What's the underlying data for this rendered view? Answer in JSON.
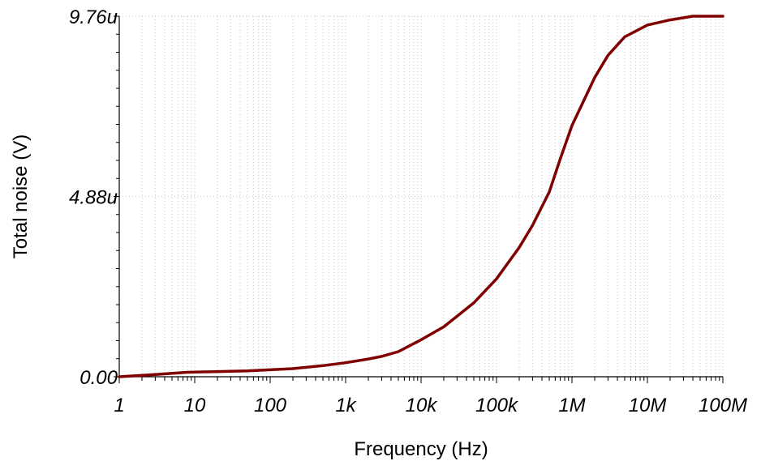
{
  "chart_data": {
    "type": "line",
    "xlabel": "Frequency (Hz)",
    "ylabel": "Total noise (V)",
    "x_scale": "log",
    "xlim": [
      1,
      100000000
    ],
    "ylim": [
      0,
      9.76
    ],
    "x_ticks": [
      {
        "value": 1,
        "label": "1"
      },
      {
        "value": 10,
        "label": "10"
      },
      {
        "value": 100,
        "label": "100"
      },
      {
        "value": 1000,
        "label": "1k"
      },
      {
        "value": 10000,
        "label": "10k"
      },
      {
        "value": 100000,
        "label": "100k"
      },
      {
        "value": 1000000,
        "label": "1M"
      },
      {
        "value": 10000000,
        "label": "10M"
      },
      {
        "value": 100000000,
        "label": "100M"
      }
    ],
    "y_ticks": [
      {
        "value": 0,
        "label": "0.00"
      },
      {
        "value": 4.88,
        "label": "4.88u"
      },
      {
        "value": 9.76,
        "label": "9.76u"
      }
    ],
    "y_unit_note": "values in microvolts",
    "grid": true,
    "legend": "none",
    "series": [
      {
        "color": "#800000",
        "x": [
          1,
          2.5,
          8,
          50,
          200,
          500,
          1000,
          2000,
          3000,
          5000,
          10000,
          20000,
          50000,
          100000,
          200000,
          300000,
          500000,
          700000,
          1000000,
          2000000,
          3000000,
          5000000,
          10000000,
          20000000,
          40000000,
          100000000
        ],
        "y": [
          0.0,
          0.05,
          0.12,
          0.16,
          0.22,
          0.3,
          0.38,
          0.48,
          0.55,
          0.68,
          1.0,
          1.35,
          2.0,
          2.65,
          3.5,
          4.1,
          5.0,
          5.9,
          6.8,
          8.1,
          8.7,
          9.2,
          9.52,
          9.66,
          9.76,
          9.76
        ]
      }
    ]
  }
}
